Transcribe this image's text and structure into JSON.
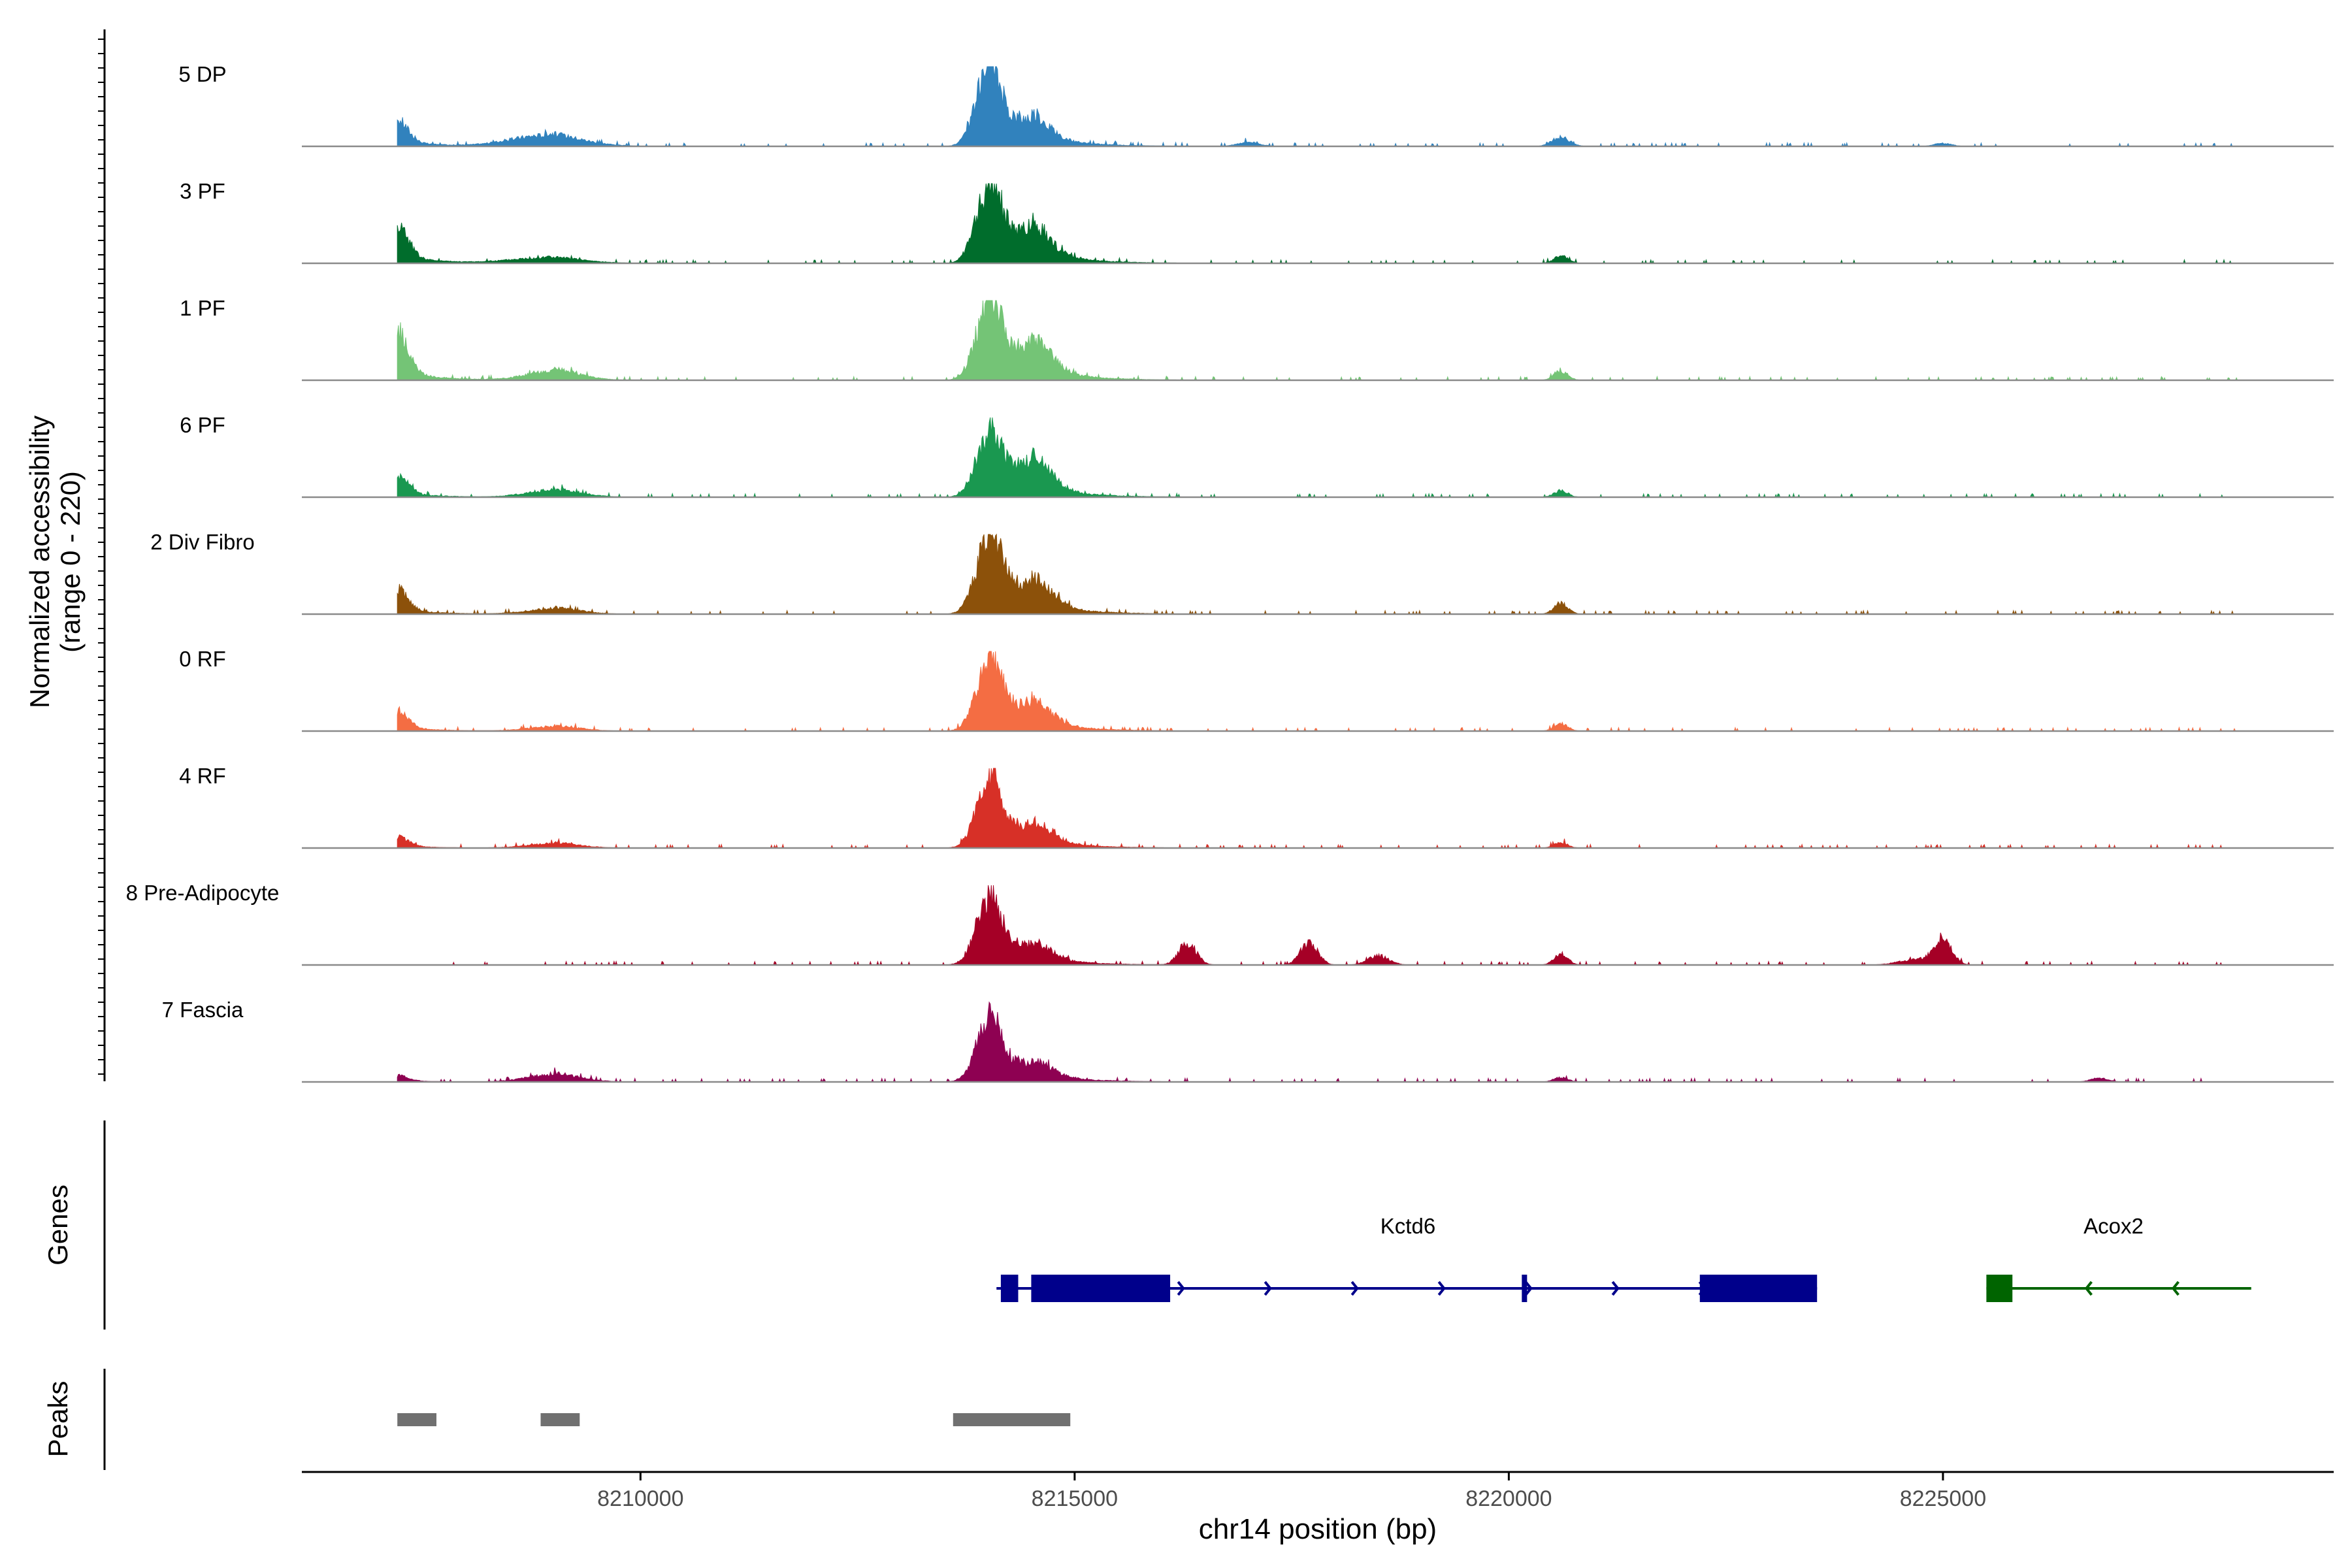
{
  "chart_data": {
    "type": "area",
    "title": "",
    "xlabel": "chr14 position (bp)",
    "ylabel": "Normalized accessibility",
    "ylabel_range": "(range 0 - 220)",
    "ylim": [
      0,
      220
    ],
    "xlim": [
      8206100,
      8229500
    ],
    "x_ticks": [
      8210000,
      8215000,
      8220000,
      8225000
    ],
    "x_tick_labels": [
      "8210000",
      "8215000",
      "8220000",
      "8225000"
    ],
    "panel_labels": {
      "genes": "Genes",
      "peaks": "Peaks"
    },
    "series": [
      {
        "name": "5 DP",
        "color": "#3182BD",
        "peaks": [
          [
            8207200,
            60,
            120,
            100
          ],
          [
            8208900,
            30,
            400,
            70
          ],
          [
            8214000,
            200,
            140,
            120
          ],
          [
            8214500,
            60,
            200,
            110
          ],
          [
            8217000,
            12,
            120,
            0
          ],
          [
            8220600,
            25,
            100,
            0
          ],
          [
            8225000,
            8,
            100,
            0
          ]
        ]
      },
      {
        "name": "3 PF",
        "color": "#006D2C",
        "peaks": [
          [
            8207200,
            90,
            120,
            100
          ],
          [
            8208900,
            15,
            400,
            60
          ],
          [
            8214000,
            200,
            140,
            120
          ],
          [
            8214500,
            80,
            200,
            110
          ],
          [
            8220600,
            20,
            80,
            0
          ]
        ]
      },
      {
        "name": "1 PF",
        "color": "#74C476",
        "peaks": [
          [
            8207200,
            110,
            120,
            100
          ],
          [
            8209000,
            25,
            300,
            40
          ],
          [
            8214000,
            200,
            140,
            120
          ],
          [
            8214500,
            80,
            220,
            110
          ],
          [
            8220600,
            25,
            80,
            0
          ]
        ]
      },
      {
        "name": "6 PF",
        "color": "#1A9850",
        "peaks": [
          [
            8207200,
            50,
            120,
            100
          ],
          [
            8209000,
            20,
            300,
            40
          ],
          [
            8214000,
            160,
            140,
            120
          ],
          [
            8214500,
            80,
            220,
            110
          ],
          [
            8220600,
            18,
            80,
            0
          ]
        ]
      },
      {
        "name": "2 Div Fibro",
        "color": "#8C510A",
        "peaks": [
          [
            8207200,
            55,
            120,
            100
          ],
          [
            8209000,
            15,
            300,
            40
          ],
          [
            8214000,
            200,
            140,
            120
          ],
          [
            8214500,
            70,
            220,
            110
          ],
          [
            8220600,
            30,
            80,
            0
          ]
        ]
      },
      {
        "name": "0 RF",
        "color": "#F46D43",
        "peaks": [
          [
            8207200,
            45,
            120,
            100
          ],
          [
            8209000,
            12,
            300,
            40
          ],
          [
            8214000,
            180,
            140,
            120
          ],
          [
            8214500,
            60,
            220,
            110
          ],
          [
            8220600,
            20,
            80,
            0
          ]
        ]
      },
      {
        "name": "4 RF",
        "color": "#D73027",
        "peaks": [
          [
            8207200,
            25,
            120,
            100
          ],
          [
            8209000,
            12,
            300,
            40
          ],
          [
            8214000,
            165,
            140,
            120
          ],
          [
            8214500,
            50,
            220,
            110
          ],
          [
            8220600,
            15,
            80,
            0
          ]
        ]
      },
      {
        "name": "8 Pre-Adipocyte",
        "color": "#A50026",
        "peaks": [
          [
            8214000,
            170,
            140,
            120
          ],
          [
            8214500,
            40,
            220,
            110
          ],
          [
            8216300,
            60,
            100,
            0
          ],
          [
            8217700,
            60,
            100,
            0
          ],
          [
            8218500,
            25,
            120,
            0
          ],
          [
            8220600,
            30,
            80,
            0
          ],
          [
            8225000,
            70,
            100,
            0
          ],
          [
            8224700,
            15,
            200,
            0
          ]
        ]
      },
      {
        "name": "7 Fascia",
        "color": "#8E0152",
        "peaks": [
          [
            8207200,
            15,
            120,
            100
          ],
          [
            8209000,
            20,
            300,
            40
          ],
          [
            8214000,
            165,
            140,
            120
          ],
          [
            8214500,
            40,
            220,
            110
          ],
          [
            8220600,
            12,
            80,
            0
          ],
          [
            8226800,
            10,
            100,
            0
          ]
        ]
      }
    ],
    "genes": [
      {
        "name": "Kctd6",
        "strand": "+",
        "color": "#00008B",
        "start": 8214100,
        "end": 8223550,
        "exons": [
          [
            8214150,
            8214350
          ],
          [
            8214500,
            8216100
          ],
          [
            8220150,
            8220200
          ],
          [
            8222200,
            8223550
          ]
        ]
      },
      {
        "name": "Acox2",
        "strand": "-",
        "color": "#006400",
        "start": 8225500,
        "end": 8228550,
        "exons": [
          [
            8225500,
            8225800
          ]
        ]
      }
    ],
    "peak_regions": [
      [
        8207200,
        8207650
      ],
      [
        8208850,
        8209300
      ],
      [
        8213600,
        8214950
      ]
    ],
    "peak_color": "#707070"
  }
}
